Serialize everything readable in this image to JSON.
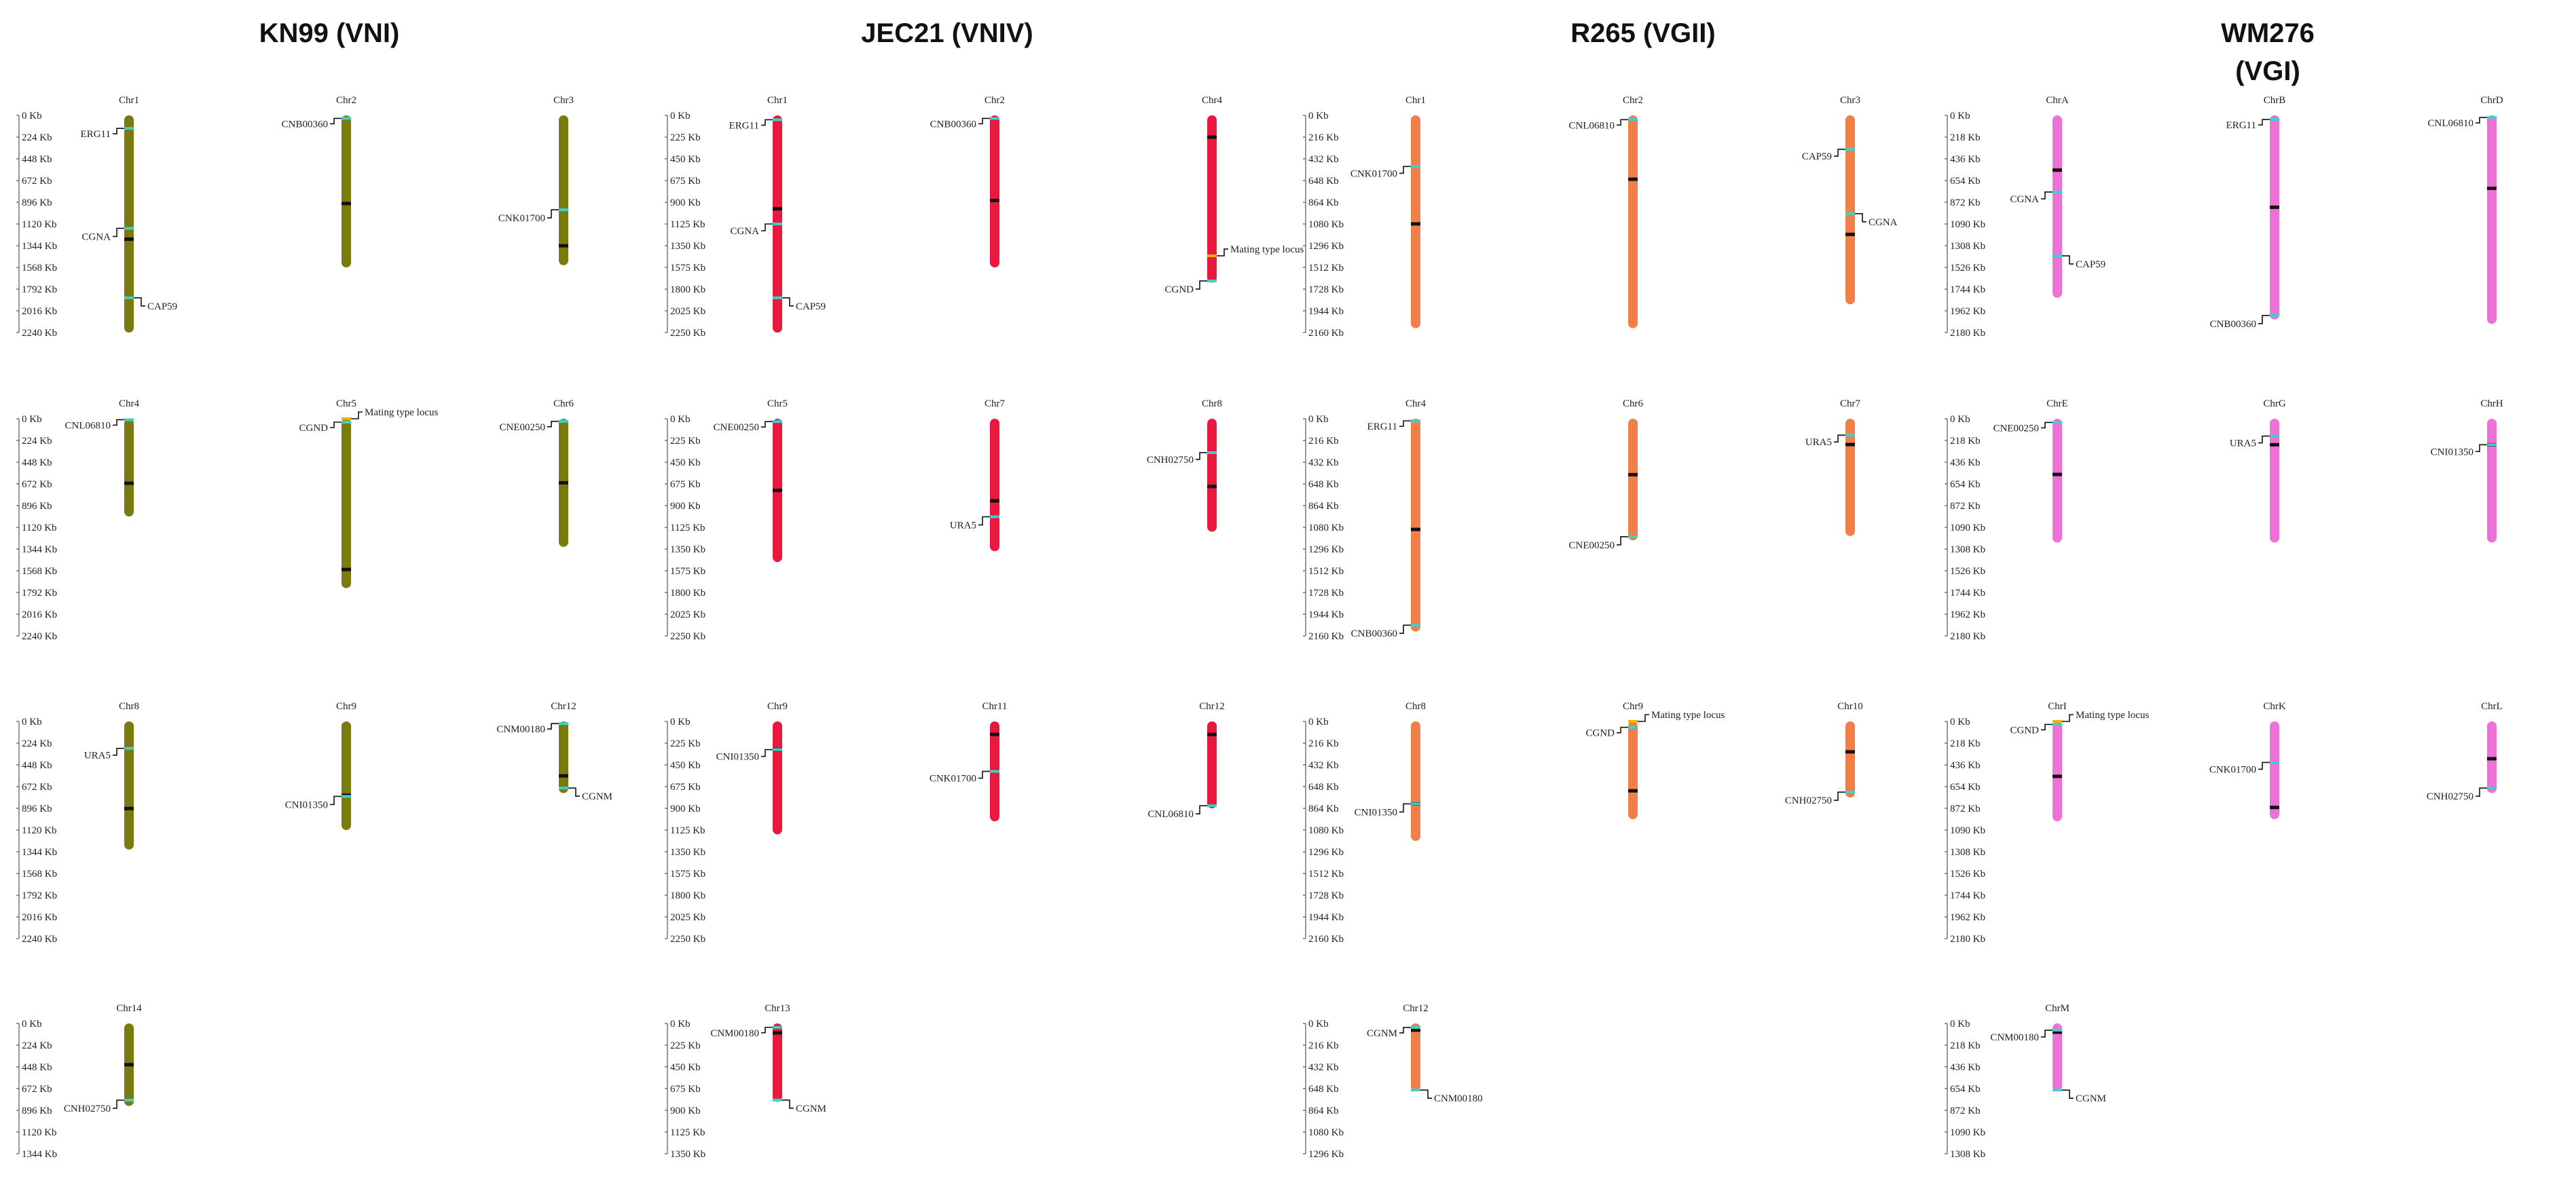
{
  "colors": {
    "KN99": "#7a7a0e",
    "JEC21": "#e8193c",
    "R265": "#f07f4a",
    "WM276": "#ee72d5",
    "marker": "#3fd0c8",
    "centromere": "#111111",
    "locus": "#f2b000"
  },
  "strains": [
    {
      "id": "KN99",
      "title": "KN99 (VNI)",
      "color": "#7a7a0e",
      "scales": [
        {
          "unit": "Kb",
          "ticks": [
            "0 Kb",
            "224 Kb",
            "448 Kb",
            "672 Kb",
            "896 Kb",
            "1120 Kb",
            "1344 Kb",
            "1568 Kb",
            "1792 Kb",
            "2016 Kb",
            "2240 Kb"
          ]
        },
        {
          "unit": "Kb",
          "ticks": [
            "0 Kb",
            "224 Kb",
            "448 Kb",
            "672 Kb",
            "896 Kb",
            "1120 Kb",
            "1344 Kb",
            "1568 Kb",
            "1792 Kb",
            "2016 Kb",
            "2240 Kb"
          ]
        },
        {
          "unit": "Kb",
          "ticks": [
            "0 Kb",
            "224 Kb",
            "448 Kb",
            "672 Kb",
            "896 Kb",
            "1120 Kb",
            "1344 Kb",
            "1568 Kb",
            "1792 Kb",
            "2016 Kb",
            "2240 Kb"
          ]
        },
        {
          "unit": "Kb",
          "ticks": [
            "0 Kb",
            "224 Kb",
            "448 Kb",
            "672 Kb",
            "896 Kb",
            "1120 Kb",
            "1344 Kb"
          ]
        }
      ],
      "chromosomes": [
        {
          "name": "Chr1",
          "row": 0,
          "col": 0,
          "length_frac": 1.0,
          "centromere": 0.57,
          "markers": [
            {
              "label": "ERG11",
              "pos": 0.06,
              "side": "left"
            },
            {
              "label": "CGNA",
              "pos": 0.52,
              "side": "left"
            },
            {
              "label": "CAP59",
              "pos": 0.84,
              "side": "right"
            }
          ]
        },
        {
          "name": "Chr2",
          "row": 0,
          "col": 1,
          "length_frac": 0.7,
          "centromere": 0.58,
          "markers": [
            {
              "label": "CNB00360",
              "pos": 0.02,
              "side": "left"
            }
          ]
        },
        {
          "name": "Chr3",
          "row": 0,
          "col": 2,
          "length_frac": 0.69,
          "centromere": 0.87,
          "markers": [
            {
              "label": "CNK01700",
              "pos": 0.63,
              "side": "left"
            }
          ]
        },
        {
          "name": "Chr4",
          "row": 1,
          "col": 0,
          "length_frac": 0.45,
          "centromere": 0.66,
          "markers": [
            {
              "label": "CNL06810",
              "pos": 0.01,
              "side": "left"
            }
          ]
        },
        {
          "name": "Chr5",
          "row": 1,
          "col": 1,
          "length_frac": 0.78,
          "centromere": 0.89,
          "markers": [
            {
              "label": "CGND",
              "pos": 0.02,
              "side": "left"
            },
            {
              "label": "Mating type locus",
              "pos": 0.0,
              "side": "right",
              "locus": true
            }
          ]
        },
        {
          "name": "Chr6",
          "row": 1,
          "col": 2,
          "length_frac": 0.59,
          "centromere": 0.5,
          "markers": [
            {
              "label": "CNE00250",
              "pos": 0.02,
              "side": "left"
            }
          ]
        },
        {
          "name": "Chr8",
          "row": 2,
          "col": 0,
          "length_frac": 0.59,
          "centromere": 0.68,
          "markers": [
            {
              "label": "URA5",
              "pos": 0.21,
              "side": "left"
            }
          ]
        },
        {
          "name": "Chr9",
          "row": 2,
          "col": 1,
          "length_frac": 0.5,
          "centromere": 0.68,
          "markers": [
            {
              "label": "CNI01350",
              "pos": 0.69,
              "side": "left"
            }
          ]
        },
        {
          "name": "Chr12",
          "row": 2,
          "col": 2,
          "length_frac": 0.33,
          "centromere": 0.76,
          "markers": [
            {
              "label": "CNM00180",
              "pos": 0.03,
              "side": "left"
            },
            {
              "label": "CGNM",
              "pos": 0.93,
              "side": "right"
            }
          ]
        },
        {
          "name": "Chr14",
          "row": 3,
          "col": 0,
          "length_frac": 0.38,
          "centromere": 0.5,
          "markers": [
            {
              "label": "CNH02750",
              "pos": 0.93,
              "side": "left"
            }
          ]
        }
      ]
    },
    {
      "id": "JEC21",
      "title": "JEC21 (VNIV)",
      "color": "#e8193c",
      "scales": [
        {
          "unit": "Kb",
          "ticks": [
            "0 Kb",
            "225 Kb",
            "450 Kb",
            "675 Kb",
            "900 Kb",
            "1125 Kb",
            "1350 Kb",
            "1575 Kb",
            "1800 Kb",
            "2025 Kb",
            "2250 Kb"
          ]
        },
        {
          "unit": "Kb",
          "ticks": [
            "0 Kb",
            "225 Kb",
            "450 Kb",
            "675 Kb",
            "900 Kb",
            "1125 Kb",
            "1350 Kb",
            "1575 Kb",
            "1800 Kb",
            "2025 Kb",
            "2250 Kb"
          ]
        },
        {
          "unit": "Kb",
          "ticks": [
            "0 Kb",
            "225 Kb",
            "450 Kb",
            "675 Kb",
            "900 Kb",
            "1125 Kb",
            "1350 Kb",
            "1575 Kb",
            "1800 Kb",
            "2025 Kb",
            "2250 Kb"
          ]
        },
        {
          "unit": "Kb",
          "ticks": [
            "0 Kb",
            "225 Kb",
            "450 Kb",
            "675 Kb",
            "900 Kb",
            "1125 Kb",
            "1350 Kb"
          ]
        }
      ],
      "chromosomes": [
        {
          "name": "Chr1",
          "row": 0,
          "col": 0,
          "length_frac": 1.0,
          "centromere": 0.43,
          "markers": [
            {
              "label": "ERG11",
              "pos": 0.02,
              "side": "left",
              "locus": true
            },
            {
              "label": "CGNA",
              "pos": 0.5,
              "side": "left"
            },
            {
              "label": "CAP59",
              "pos": 0.84,
              "side": "right"
            }
          ]
        },
        {
          "name": "Chr2",
          "row": 0,
          "col": 1,
          "length_frac": 0.7,
          "centromere": 0.56,
          "markers": [
            {
              "label": "CNB00360",
              "pos": 0.02,
              "side": "left"
            }
          ]
        },
        {
          "name": "Chr4",
          "row": 0,
          "col": 2,
          "length_frac": 0.77,
          "centromere": 0.13,
          "markers": [
            {
              "label": "CGND",
              "pos": 0.99,
              "side": "left"
            },
            {
              "label": "Mating type locus",
              "pos": 0.84,
              "side": "right",
              "locus": true
            }
          ]
        },
        {
          "name": "Chr5",
          "row": 1,
          "col": 0,
          "length_frac": 0.66,
          "centromere": 0.5,
          "markers": [
            {
              "label": "CNE00250",
              "pos": 0.02,
              "side": "left"
            }
          ]
        },
        {
          "name": "Chr7",
          "row": 1,
          "col": 1,
          "length_frac": 0.61,
          "centromere": 0.62,
          "markers": [
            {
              "label": "URA5",
              "pos": 0.74,
              "side": "left"
            }
          ]
        },
        {
          "name": "Chr8",
          "row": 1,
          "col": 2,
          "length_frac": 0.52,
          "centromere": 0.6,
          "markers": [
            {
              "label": "CNH02750",
              "pos": 0.3,
              "side": "left"
            }
          ]
        },
        {
          "name": "Chr9",
          "row": 2,
          "col": 0,
          "length_frac": 0.52,
          "centromere": 0.25,
          "markers": [
            {
              "label": "CNI01350",
              "pos": 0.25,
              "side": "left"
            }
          ]
        },
        {
          "name": "Chr11",
          "row": 2,
          "col": 1,
          "length_frac": 0.46,
          "centromere": 0.13,
          "markers": [
            {
              "label": "CNK01700",
              "pos": 0.5,
              "side": "left"
            }
          ]
        },
        {
          "name": "Chr12",
          "row": 2,
          "col": 2,
          "length_frac": 0.4,
          "centromere": 0.15,
          "markers": [
            {
              "label": "CNL06810",
              "pos": 0.97,
              "side": "left"
            }
          ]
        },
        {
          "name": "Chr13",
          "row": 3,
          "col": 0,
          "length_frac": 0.36,
          "centromere": 0.12,
          "markers": [
            {
              "label": "CNM00180",
              "pos": 0.05,
              "side": "left"
            },
            {
              "label": "CGNM",
              "pos": 0.98,
              "side": "right"
            }
          ]
        }
      ]
    },
    {
      "id": "R265",
      "title": "R265 (VGII)",
      "color": "#f07f4a",
      "scales": [
        {
          "unit": "Kb",
          "ticks": [
            "0 Kb",
            "216 Kb",
            "432 Kb",
            "648 Kb",
            "864 Kb",
            "1080 Kb",
            "1296 Kb",
            "1512 Kb",
            "1728 Kb",
            "1944 Kb",
            "2160 Kb"
          ]
        },
        {
          "unit": "Kb",
          "ticks": [
            "0 Kb",
            "216 Kb",
            "432 Kb",
            "648 Kb",
            "864 Kb",
            "1080 Kb",
            "1296 Kb",
            "1512 Kb",
            "1728 Kb",
            "1944 Kb",
            "2160 Kb"
          ]
        },
        {
          "unit": "Kb",
          "ticks": [
            "0 Kb",
            "216 Kb",
            "432 Kb",
            "648 Kb",
            "864 Kb",
            "1080 Kb",
            "1296 Kb",
            "1512 Kb",
            "1728 Kb",
            "1944 Kb",
            "2160 Kb"
          ]
        },
        {
          "unit": "Kb",
          "ticks": [
            "0 Kb",
            "216 Kb",
            "432 Kb",
            "648 Kb",
            "864 Kb",
            "1080 Kb",
            "1296 Kb"
          ]
        }
      ],
      "chromosomes": [
        {
          "name": "Chr1",
          "row": 0,
          "col": 0,
          "length_frac": 0.98,
          "centromere": 0.51,
          "markers": [
            {
              "label": "CNK01700",
              "pos": 0.24,
              "side": "left"
            }
          ]
        },
        {
          "name": "Chr2",
          "row": 0,
          "col": 1,
          "length_frac": 0.98,
          "centromere": 0.3,
          "markers": [
            {
              "label": "CNL06810",
              "pos": 0.02,
              "side": "left"
            }
          ]
        },
        {
          "name": "Chr3",
          "row": 0,
          "col": 2,
          "length_frac": 0.87,
          "centromere": 0.63,
          "markers": [
            {
              "label": "CAP59",
              "pos": 0.18,
              "side": "left"
            },
            {
              "label": "CGNA",
              "pos": 0.52,
              "side": "right"
            }
          ]
        },
        {
          "name": "Chr4",
          "row": 1,
          "col": 0,
          "length_frac": 0.98,
          "centromere": 0.52,
          "markers": [
            {
              "label": "ERG11",
              "pos": 0.01,
              "side": "left",
              "locus": true
            },
            {
              "label": "CNB00360",
              "pos": 0.97,
              "side": "left"
            }
          ]
        },
        {
          "name": "Chr6",
          "row": 1,
          "col": 1,
          "length_frac": 0.56,
          "centromere": 0.46,
          "markers": [
            {
              "label": "CNE00250",
              "pos": 0.97,
              "side": "left"
            }
          ]
        },
        {
          "name": "Chr7",
          "row": 1,
          "col": 2,
          "length_frac": 0.54,
          "centromere": 0.22,
          "markers": [
            {
              "label": "URA5",
              "pos": 0.14,
              "side": "left"
            }
          ]
        },
        {
          "name": "Chr8",
          "row": 2,
          "col": 0,
          "length_frac": 0.55,
          "centromere": 0.69,
          "markers": [
            {
              "label": "CNI01350",
              "pos": 0.69,
              "side": "left"
            }
          ]
        },
        {
          "name": "Chr9",
          "row": 2,
          "col": 1,
          "length_frac": 0.45,
          "centromere": 0.71,
          "markers": [
            {
              "label": "CGND",
              "pos": 0.06,
              "side": "left"
            },
            {
              "label": "Mating type locus",
              "pos": 0.0,
              "side": "right",
              "locus": true
            }
          ]
        },
        {
          "name": "Chr10",
          "row": 2,
          "col": 2,
          "length_frac": 0.35,
          "centromere": 0.4,
          "markers": [
            {
              "label": "CNH02750",
              "pos": 0.93,
              "side": "left"
            }
          ]
        },
        {
          "name": "Chr12",
          "row": 3,
          "col": 0,
          "length_frac": 0.31,
          "centromere": 0.1,
          "markers": [
            {
              "label": "CGNM",
              "pos": 0.06,
              "side": "left"
            },
            {
              "label": "CNM00180",
              "pos": 0.99,
              "side": "right"
            }
          ]
        }
      ]
    },
    {
      "id": "WM276",
      "title": "WM276\n(VGI)",
      "color": "#ee72d5",
      "scales": [
        {
          "unit": "Kb",
          "ticks": [
            "0 Kb",
            "218 Kb",
            "436 Kb",
            "654 Kb",
            "872 Kb",
            "1090 Kb",
            "1308 Kb",
            "1526 Kb",
            "1744 Kb",
            "1962 Kb",
            "2180 Kb"
          ]
        },
        {
          "unit": "Kb",
          "ticks": [
            "0 Kb",
            "218 Kb",
            "436 Kb",
            "654 Kb",
            "872 Kb",
            "1090 Kb",
            "1308 Kb",
            "1526 Kb",
            "1744 Kb",
            "1962 Kb",
            "2180 Kb"
          ]
        },
        {
          "unit": "Kb",
          "ticks": [
            "0 Kb",
            "218 Kb",
            "436 Kb",
            "654 Kb",
            "872 Kb",
            "1090 Kb",
            "1308 Kb",
            "1526 Kb",
            "1744 Kb",
            "1962 Kb",
            "2180 Kb"
          ]
        },
        {
          "unit": "Kb",
          "ticks": [
            "0 Kb",
            "218 Kb",
            "436 Kb",
            "654 Kb",
            "872 Kb",
            "1090 Kb",
            "1308 Kb"
          ]
        }
      ],
      "chromosomes": [
        {
          "name": "ChrA",
          "row": 0,
          "col": 0,
          "length_frac": 0.84,
          "centromere": 0.3,
          "markers": [
            {
              "label": "CGNA",
              "pos": 0.42,
              "side": "left"
            },
            {
              "label": "CAP59",
              "pos": 0.77,
              "side": "right"
            }
          ]
        },
        {
          "name": "ChrB",
          "row": 0,
          "col": 1,
          "length_frac": 0.94,
          "centromere": 0.45,
          "markers": [
            {
              "label": "ERG11",
              "pos": 0.02,
              "side": "left",
              "locus": true
            },
            {
              "label": "CNB00360",
              "pos": 0.98,
              "side": "left"
            }
          ]
        },
        {
          "name": "ChrD",
          "row": 0,
          "col": 2,
          "length_frac": 0.96,
          "centromere": 0.35,
          "markers": [
            {
              "label": "CNL06810",
              "pos": 0.01,
              "side": "left"
            }
          ]
        },
        {
          "name": "ChrE",
          "row": 1,
          "col": 0,
          "length_frac": 0.57,
          "centromere": 0.45,
          "markers": [
            {
              "label": "CNE00250",
              "pos": 0.03,
              "side": "left"
            }
          ]
        },
        {
          "name": "ChrG",
          "row": 1,
          "col": 1,
          "length_frac": 0.57,
          "centromere": 0.21,
          "markers": [
            {
              "label": "URA5",
              "pos": 0.14,
              "side": "left"
            }
          ]
        },
        {
          "name": "ChrH",
          "row": 1,
          "col": 2,
          "length_frac": 0.57,
          "centromere": 0.21,
          "markers": [
            {
              "label": "CNI01350",
              "pos": 0.21,
              "side": "left"
            }
          ]
        },
        {
          "name": "ChrI",
          "row": 2,
          "col": 0,
          "length_frac": 0.46,
          "centromere": 0.55,
          "markers": [
            {
              "label": "CGND",
              "pos": 0.03,
              "side": "left"
            },
            {
              "label": "Mating type locus",
              "pos": 0.0,
              "side": "right",
              "locus": true
            }
          ]
        },
        {
          "name": "ChrK",
          "row": 2,
          "col": 1,
          "length_frac": 0.45,
          "centromere": 0.88,
          "markers": [
            {
              "label": "CNK01700",
              "pos": 0.42,
              "side": "left"
            }
          ]
        },
        {
          "name": "ChrL",
          "row": 2,
          "col": 2,
          "length_frac": 0.33,
          "centromere": 0.52,
          "markers": [
            {
              "label": "CNH02750",
              "pos": 0.93,
              "side": "left"
            }
          ]
        },
        {
          "name": "ChrM",
          "row": 3,
          "col": 0,
          "length_frac": 0.31,
          "centromere": 0.13,
          "markers": [
            {
              "label": "CNM00180",
              "pos": 0.1,
              "side": "left"
            },
            {
              "label": "CGNM",
              "pos": 0.99,
              "side": "right"
            }
          ]
        }
      ]
    }
  ]
}
